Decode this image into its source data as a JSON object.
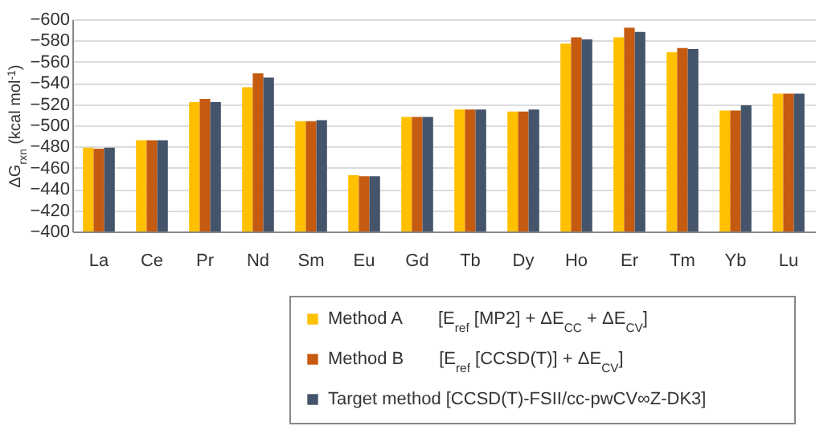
{
  "chart_data": {
    "type": "bar",
    "ylabel": "ΔG$_{rxn}$ (kcal mol$^{-1}$)",
    "categories": [
      "La",
      "Ce",
      "Pr",
      "Nd",
      "Sm",
      "Eu",
      "Gd",
      "Tb",
      "Dy",
      "Ho",
      "Er",
      "Tm",
      "Yb",
      "Lu"
    ],
    "series": [
      {
        "name": "Method A    [E$_{ref}$ [MP2] + ΔE$_{CC}$ + ΔE$_{CV}$]",
        "color": "#ffc000",
        "values": [
          -479,
          -486,
          -522,
          -536,
          -504,
          -453,
          -508,
          -515,
          -513,
          -577,
          -583,
          -569,
          -514,
          -530
        ]
      },
      {
        "name": "Method B    [E$_{ref}$ [CCSD(T)] + ΔE$_{CV}$]",
        "color": "#c55a11",
        "values": [
          -478,
          -486,
          -525,
          -549,
          -504,
          -452,
          -508,
          -515,
          -513,
          -583,
          -592,
          -573,
          -514,
          -530
        ]
      },
      {
        "name": "Target method    [CCSD(T)-FSII/cc-pwCV∞Z-DK3]",
        "color": "#44546a",
        "values": [
          -479,
          -486,
          -522,
          -545,
          -505,
          -452,
          -508,
          -515,
          -515,
          -581,
          -588,
          -572,
          -519,
          -530
        ]
      }
    ],
    "ylim": [
      -400,
      -600
    ],
    "yticks": [
      -400,
      -420,
      -440,
      -460,
      -480,
      -500,
      -520,
      -540,
      -560,
      -580,
      -600
    ],
    "grid": "y",
    "legend": "bottom"
  }
}
